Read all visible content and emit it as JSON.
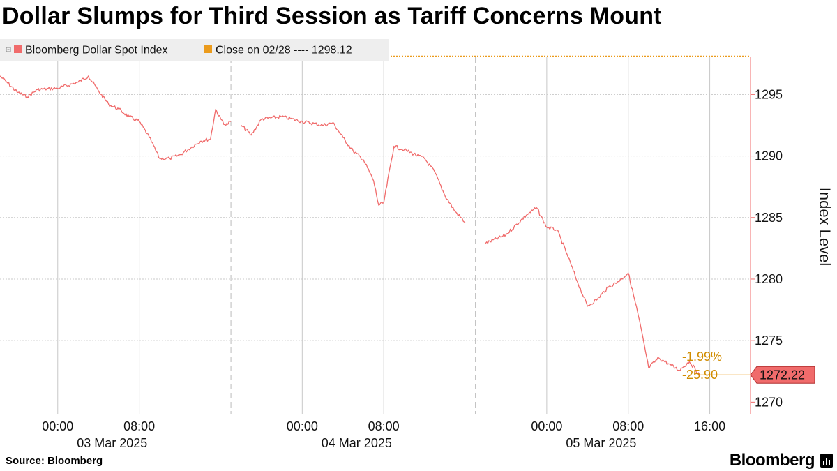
{
  "title": "Dollar Slumps for Third Session as Tariff Concerns Mount",
  "source": "Source: Bloomberg",
  "brand": "Bloomberg",
  "brand_icon": "bloomberg-terminal-icon",
  "colors": {
    "series": "#f06b6b",
    "reference": "#eb9b1c",
    "annotation": "#d18c00",
    "grid": "#c8c8c8"
  },
  "chart_data": {
    "type": "line",
    "ylabel": "Index Level",
    "ylim": [
      1269,
      1299.5
    ],
    "yticks": [
      1270,
      1275,
      1280,
      1285,
      1290,
      1295
    ],
    "xlim": [
      "2025-03-02 18:20",
      "2025-03-05 20:00"
    ],
    "xticks": [
      {
        "time": "2025-03-03 00:00",
        "label": "00:00",
        "date": "03 Mar 2025"
      },
      {
        "time": "2025-03-03 08:00",
        "label": "08:00"
      },
      {
        "time": "2025-03-04 00:00",
        "label": "00:00",
        "date": "04 Mar 2025"
      },
      {
        "time": "2025-03-04 08:00",
        "label": "08:00"
      },
      {
        "time": "2025-03-05 00:00",
        "label": "00:00",
        "date": "05 Mar 2025"
      },
      {
        "time": "2025-03-05 08:00",
        "label": "08:00"
      },
      {
        "time": "2025-03-05 16:00",
        "label": "16:00"
      }
    ],
    "session_breaks": [
      "2025-03-03 17:00",
      "2025-03-04 17:00"
    ],
    "legend": [
      {
        "name": "Bloomberg Dollar Spot Index",
        "color": "#f06b6b"
      },
      {
        "name": "Close on 02/28 ---- 1298.12",
        "color": "#eb9b1c"
      }
    ],
    "reference_line": {
      "name": "Close on 02/28",
      "value": 1298.12
    },
    "last_value": {
      "value": 1272.22,
      "label": "1272.22"
    },
    "change": {
      "percent": "-1.99%",
      "points": "-25.90"
    },
    "series": [
      {
        "name": "Bloomberg Dollar Spot Index",
        "x": [
          "2025-03-02 18:20",
          "2025-03-02 19:00",
          "2025-03-02 20:00",
          "2025-03-02 21:00",
          "2025-03-02 22:00",
          "2025-03-03 00:00",
          "2025-03-03 02:00",
          "2025-03-03 03:00",
          "2025-03-03 04:00",
          "2025-03-03 05:00",
          "2025-03-03 06:00",
          "2025-03-03 07:00",
          "2025-03-03 08:00",
          "2025-03-03 09:00",
          "2025-03-03 10:00",
          "2025-03-03 11:00",
          "2025-03-03 12:00",
          "2025-03-03 14:00",
          "2025-03-03 15:00",
          "2025-03-03 15:30",
          "2025-03-03 16:00",
          "2025-03-03 16:30",
          "2025-03-03 17:00",
          "2025-03-03 18:00",
          "2025-03-03 19:00",
          "2025-03-03 20:00",
          "2025-03-03 22:00",
          "2025-03-04 00:00",
          "2025-03-04 02:00",
          "2025-03-04 03:00",
          "2025-03-04 04:00",
          "2025-03-04 05:00",
          "2025-03-04 06:00",
          "2025-03-04 07:00",
          "2025-03-04 07:30",
          "2025-03-04 08:00",
          "2025-03-04 09:00",
          "2025-03-04 10:00",
          "2025-03-04 12:00",
          "2025-03-04 13:00",
          "2025-03-04 14:00",
          "2025-03-04 15:00",
          "2025-03-04 16:00",
          "2025-03-04 18:00",
          "2025-03-04 20:00",
          "2025-03-04 22:00",
          "2025-03-04 23:00",
          "2025-03-05 00:00",
          "2025-03-05 01:00",
          "2025-03-05 02:00",
          "2025-03-05 03:00",
          "2025-03-05 04:00",
          "2025-03-05 05:00",
          "2025-03-05 06:00",
          "2025-03-05 07:00",
          "2025-03-05 08:00",
          "2025-03-05 09:00",
          "2025-03-05 10:00",
          "2025-03-05 11:00",
          "2025-03-05 12:00",
          "2025-03-05 13:00",
          "2025-03-05 14:00",
          "2025-03-05 15:00"
        ],
        "y": [
          1296.5,
          1296.0,
          1295.2,
          1294.8,
          1295.4,
          1295.5,
          1296.0,
          1296.5,
          1295.3,
          1294.2,
          1293.8,
          1293.2,
          1292.8,
          1291.5,
          1289.8,
          1289.8,
          1290.1,
          1291.2,
          1291.4,
          1293.8,
          1293.0,
          1292.5,
          1292.8,
          1292.5,
          1291.7,
          1293.0,
          1293.2,
          1292.8,
          1292.5,
          1292.7,
          1291.5,
          1290.4,
          1289.7,
          1288.0,
          1286.0,
          1286.2,
          1290.8,
          1290.5,
          1289.8,
          1288.7,
          1286.8,
          1285.5,
          1284.6,
          1282.9,
          1283.6,
          1285.2,
          1285.8,
          1284.2,
          1284.0,
          1282.0,
          1279.8,
          1277.8,
          1278.4,
          1279.3,
          1279.8,
          1280.5,
          1277.0,
          1272.8,
          1273.6,
          1273.1,
          1272.6,
          1273.3,
          1272.22
        ]
      }
    ]
  }
}
